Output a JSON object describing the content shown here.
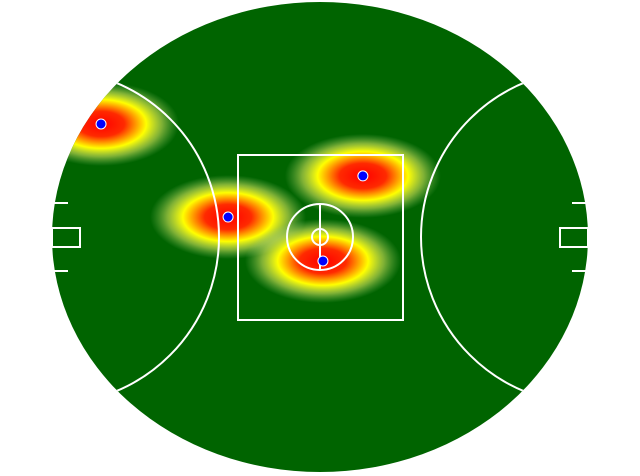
{
  "chart_data": {
    "type": "heatmap",
    "x": [
      -0.817,
      -0.343,
      0.16,
      0.011
    ],
    "y": [
      0.481,
      0.085,
      0.26,
      -0.102
    ],
    "xlim": [
      -1,
      1
    ],
    "ylim": [
      -1,
      1
    ],
    "color": "#0000ff"
  }
}
